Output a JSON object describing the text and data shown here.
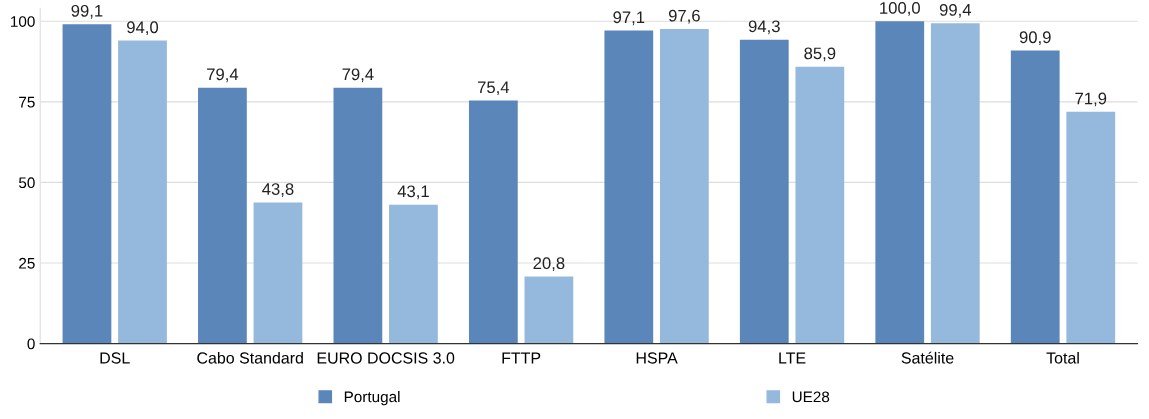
{
  "chart_data": {
    "type": "bar",
    "categories": [
      "DSL",
      "Cabo Standard",
      "EURO DOCSIS 3.0",
      "FTTP",
      "HSPA",
      "LTE",
      "Satélite",
      "Total"
    ],
    "series": [
      {
        "name": "Portugal",
        "color": "#5b86b9",
        "values": [
          99.1,
          79.4,
          79.4,
          75.4,
          97.1,
          94.3,
          100.0,
          90.9
        ],
        "value_labels": [
          "99,1",
          "79,4",
          "79,4",
          "75,4",
          "97,1",
          "94,3",
          "100,0",
          "90,9"
        ]
      },
      {
        "name": "UE28",
        "color": "#95b9dd",
        "values": [
          94.0,
          43.8,
          43.1,
          20.8,
          97.6,
          85.9,
          99.4,
          71.9
        ],
        "value_labels": [
          "94,0",
          "43,8",
          "43,1",
          "20,8",
          "97,6",
          "85,9",
          "99,4",
          "71,9"
        ]
      }
    ],
    "ylim": [
      0,
      104
    ],
    "yticks": [
      0,
      25,
      50,
      75,
      100
    ],
    "grid": "y",
    "legend": "bottom"
  }
}
